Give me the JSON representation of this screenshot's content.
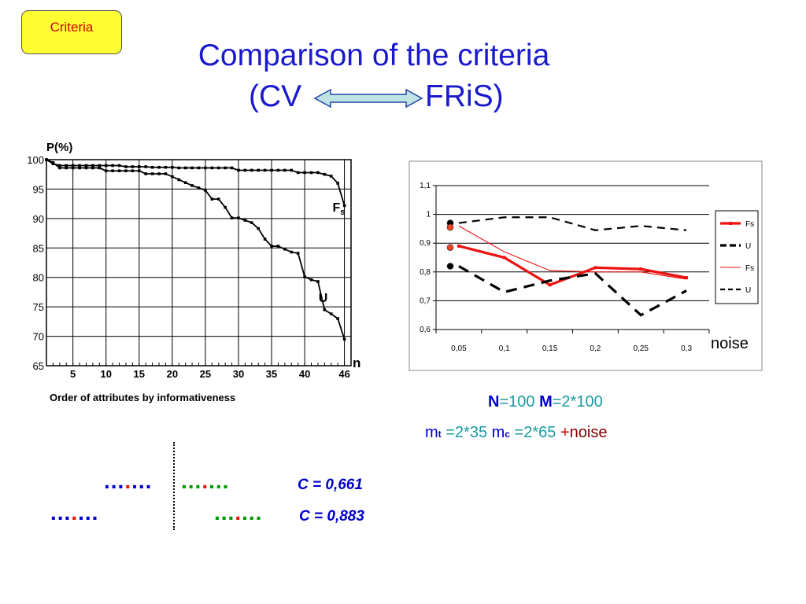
{
  "header": {
    "criteria_label": "Criteria",
    "title_line1": "Comparison of the criteria",
    "title_left": "(CV",
    "title_right": "FRiS)"
  },
  "colors": {
    "title": "#1a1acc",
    "fs_series": "#ee1111",
    "u_series": "#000000",
    "caption_teal": "#1a9aa0",
    "dots_blue": "#0000cc",
    "dots_green": "#009900",
    "dots_red": "#ee1111"
  },
  "left_chart_caption": "Order of attributes by informativeness",
  "noise_label": "noise",
  "params": {
    "n_label": "N",
    "n_value": "=100 ",
    "m_label": "M",
    "m_value": "=2*100",
    "mt_label": "m",
    "mt_sub": "t",
    "mt_value": " =2*35 ",
    "mc_label": "m",
    "mc_sub": "c",
    "mc_value": " =2*65 ",
    "plus": "+",
    "noise": "noise"
  },
  "results": [
    {
      "c_value": "C = 0,661"
    },
    {
      "c_value": "C = 0,883"
    }
  ],
  "chart_data": [
    {
      "type": "line",
      "title": "",
      "ylabel": "P(%)",
      "xlabel": "n",
      "ylim": [
        65,
        100
      ],
      "xlim": [
        1,
        47
      ],
      "x_ticks": [
        "5",
        "10",
        "15",
        "20",
        "25",
        "30",
        "35",
        "40",
        "46"
      ],
      "y_ticks": [
        "100",
        "95",
        "90",
        "85",
        "80",
        "75",
        "70",
        "65"
      ],
      "grid": true,
      "series": [
        {
          "name": "Fs",
          "x": [
            1,
            2,
            3,
            4,
            5,
            6,
            7,
            8,
            9,
            10,
            11,
            12,
            13,
            14,
            15,
            16,
            17,
            18,
            19,
            20,
            21,
            22,
            23,
            24,
            25,
            26,
            27,
            28,
            29,
            30,
            31,
            32,
            33,
            34,
            35,
            36,
            37,
            38,
            39,
            40,
            41,
            42,
            43,
            44,
            45,
            46
          ],
          "values": [
            100,
            99.3,
            99,
            99,
            99,
            99,
            99,
            99,
            99,
            99,
            99,
            99,
            98.8,
            98.8,
            98.8,
            98.8,
            98.7,
            98.7,
            98.7,
            98.7,
            98.6,
            98.6,
            98.6,
            98.6,
            98.6,
            98.6,
            98.6,
            98.6,
            98.6,
            98.2,
            98.2,
            98.2,
            98.2,
            98.2,
            98.2,
            98.2,
            98.2,
            98.2,
            97.8,
            97.8,
            97.8,
            97.8,
            97.5,
            97.2,
            96,
            92.2
          ]
        },
        {
          "name": "U",
          "x": [
            1,
            2,
            3,
            4,
            5,
            6,
            7,
            8,
            9,
            10,
            11,
            12,
            13,
            14,
            15,
            16,
            17,
            18,
            19,
            20,
            21,
            22,
            23,
            24,
            25,
            26,
            27,
            28,
            29,
            30,
            31,
            32,
            33,
            34,
            35,
            36,
            37,
            38,
            39,
            40,
            41,
            42,
            43,
            44,
            45,
            46
          ],
          "values": [
            100,
            99.5,
            98.6,
            98.6,
            98.6,
            98.6,
            98.6,
            98.6,
            98.6,
            98.1,
            98.1,
            98.1,
            98.1,
            98.1,
            98.1,
            97.6,
            97.6,
            97.6,
            97.6,
            97.1,
            96.6,
            96.1,
            95.6,
            95.2,
            94.8,
            93.3,
            93.3,
            91.9,
            90.1,
            90.1,
            89.7,
            89.3,
            88.3,
            86.5,
            85.3,
            85.3,
            84.8,
            84.3,
            84.1,
            80.1,
            79.6,
            79.3,
            74.5,
            73.8,
            73,
            69.5
          ]
        }
      ]
    },
    {
      "type": "line",
      "title": "",
      "xlabel": "noise",
      "ylabel": "",
      "ylim": [
        0.6,
        1.1
      ],
      "categories": [
        "0,05",
        "0,1",
        "0,15",
        "0,2",
        "0,25",
        "0,3"
      ],
      "y_ticks": [
        "1,1",
        "1",
        "0,9",
        "0,8",
        "0,7",
        "0,6"
      ],
      "grid": true,
      "legend": "right",
      "series": [
        {
          "name": "Fs",
          "style": "thick-red-markers",
          "values": [
            0.89,
            0.85,
            0.755,
            0.815,
            0.81,
            0.78
          ]
        },
        {
          "name": "U",
          "style": "thick-black-dashed",
          "values": [
            0.82,
            0.73,
            0.77,
            0.795,
            0.65,
            0.735
          ]
        },
        {
          "name": "Fs",
          "style": "thin-red",
          "values": [
            0.96,
            0.87,
            0.805,
            0.8,
            0.8,
            0.775
          ]
        },
        {
          "name": "U",
          "style": "thin-black-dashed",
          "values": [
            0.97,
            0.99,
            0.99,
            0.945,
            0.96,
            0.945
          ]
        }
      ],
      "start_markers": [
        0.97,
        0.955,
        0.885,
        0.82
      ]
    }
  ]
}
